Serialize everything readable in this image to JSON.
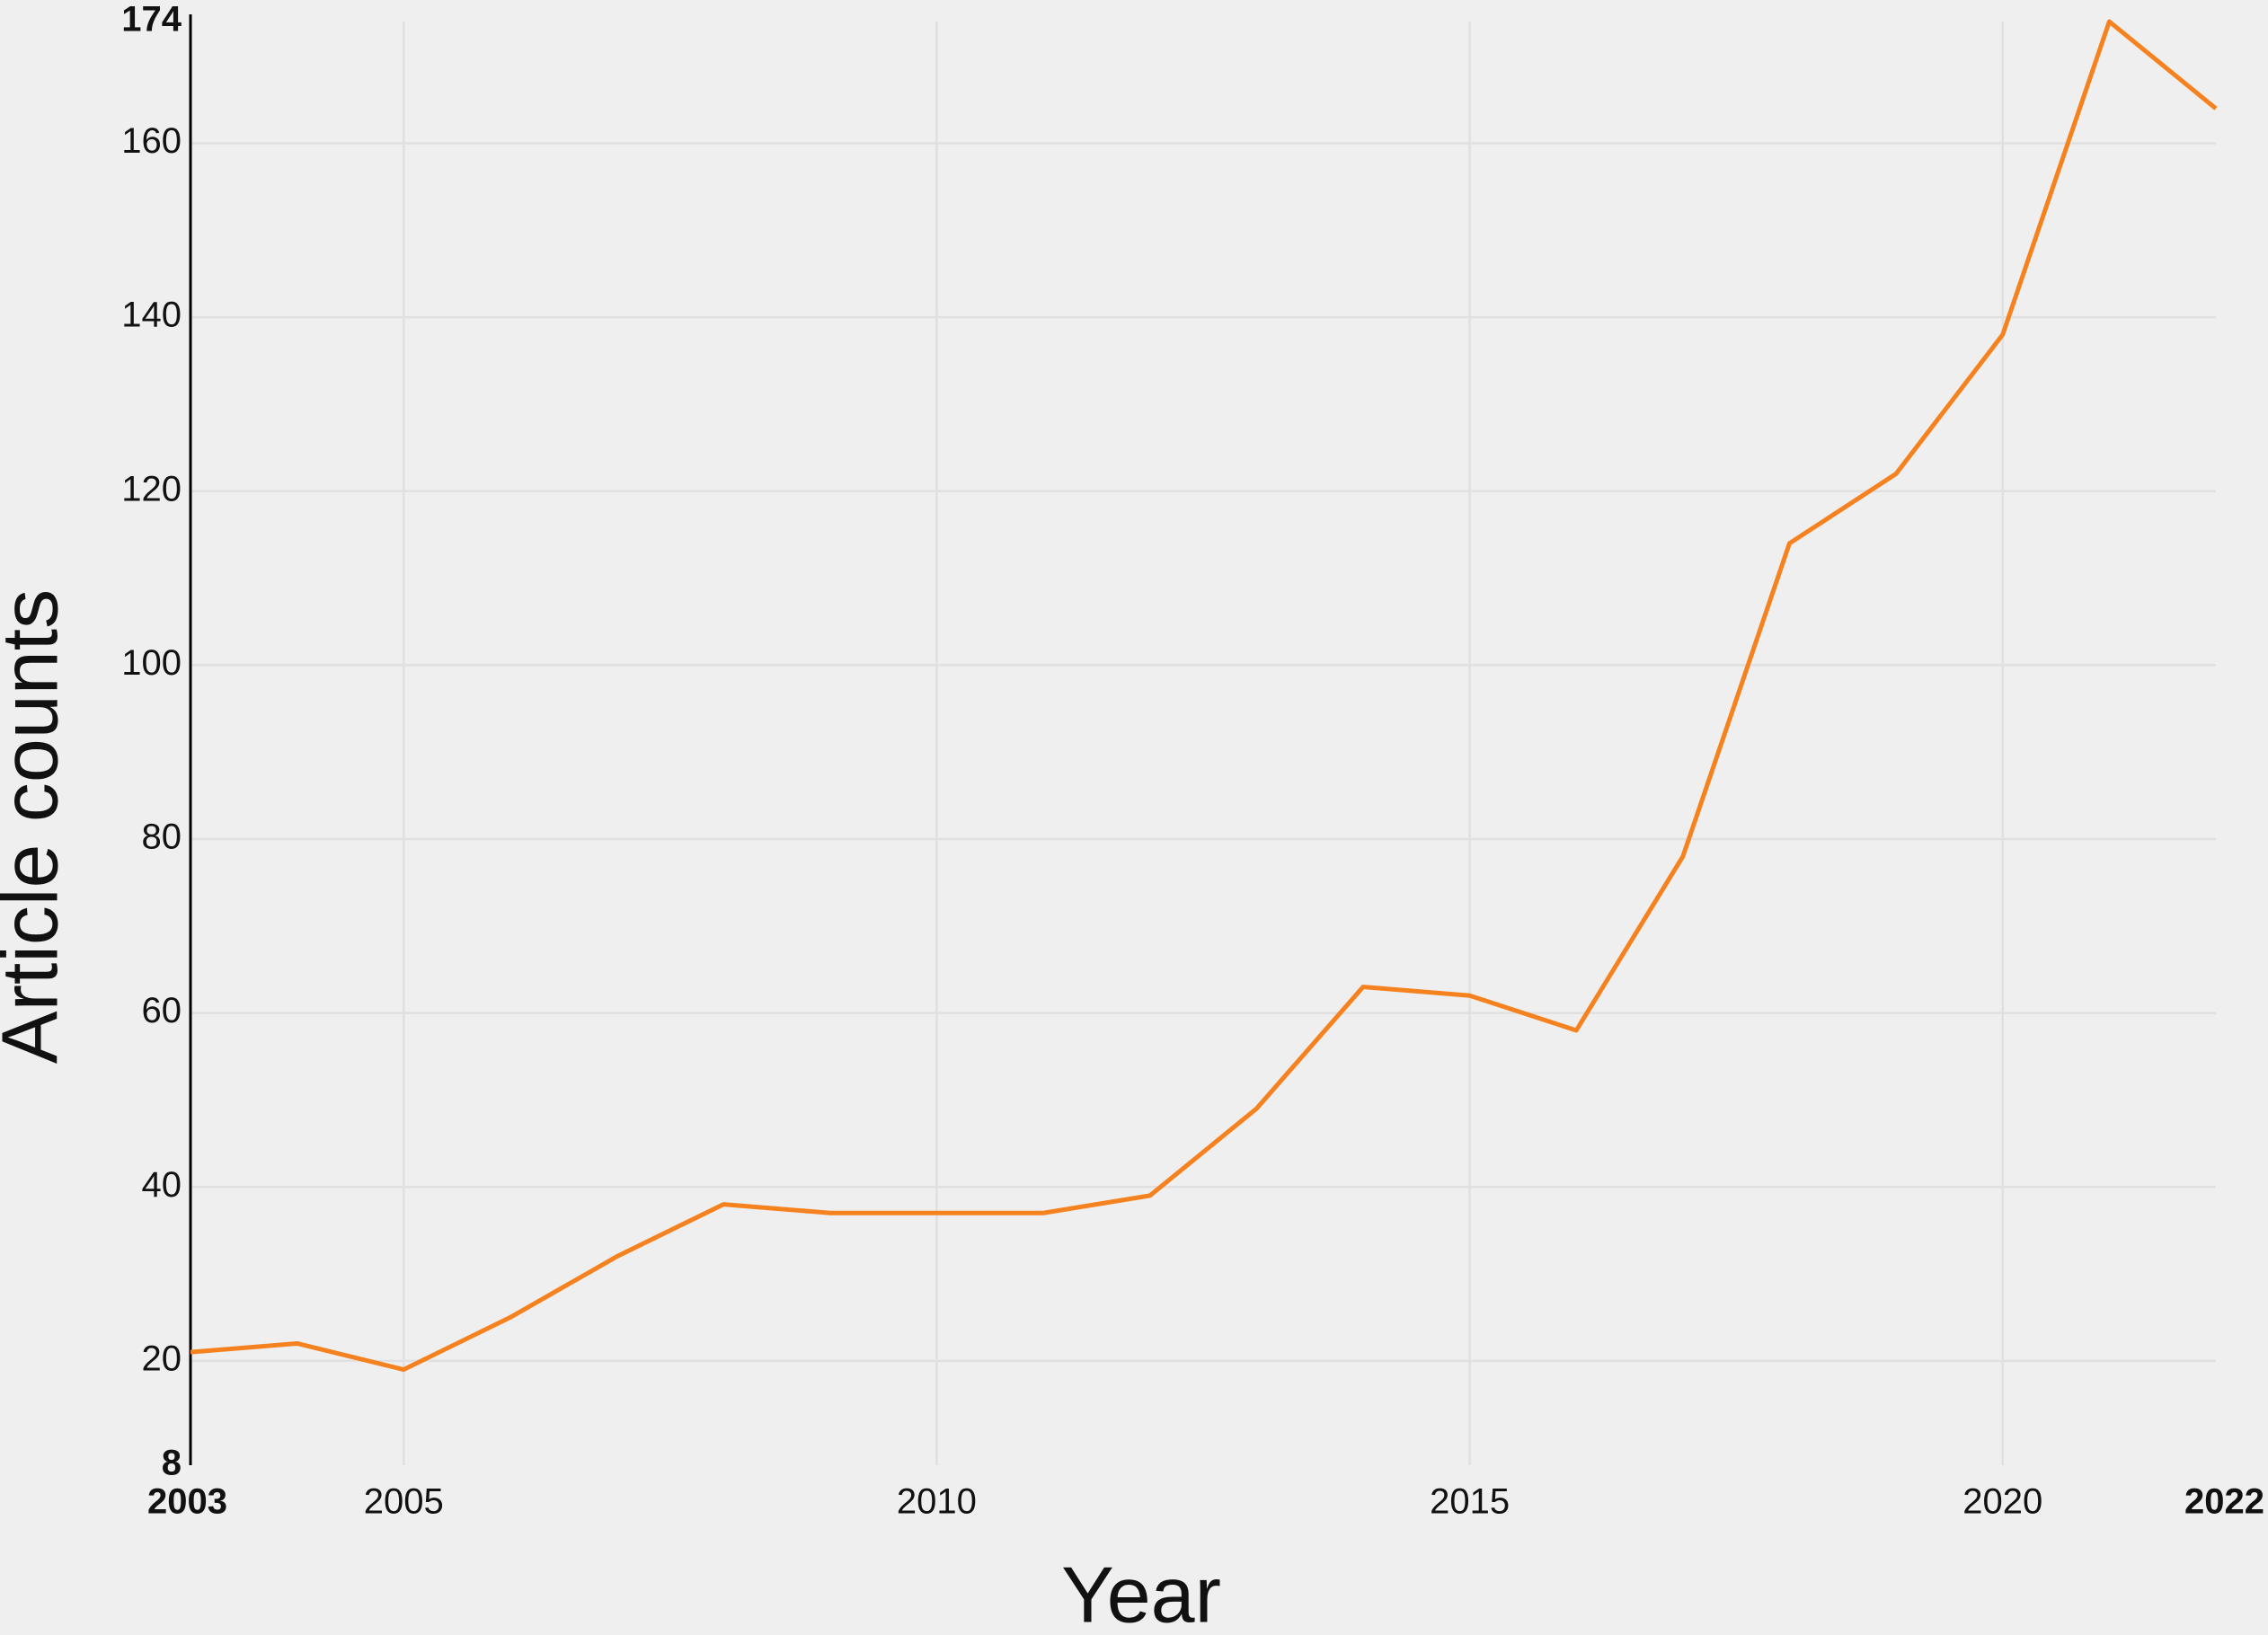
{
  "chart_data": {
    "type": "line",
    "x_label": "Year",
    "y_label": "Article counts",
    "x": [
      2003,
      2004,
      2005,
      2006,
      2007,
      2008,
      2009,
      2010,
      2011,
      2012,
      2013,
      2014,
      2015,
      2016,
      2017,
      2018,
      2019,
      2020,
      2021,
      2022
    ],
    "series": [
      {
        "name": "Article counts",
        "color": "#f5821f",
        "values": [
          21,
          22,
          19,
          25,
          32,
          38,
          37,
          37,
          37,
          39,
          49,
          63,
          62,
          58,
          78,
          114,
          122,
          138,
          174,
          164
        ]
      }
    ],
    "xlim": [
      2003,
      2022
    ],
    "xticks": [
      2003,
      2005,
      2010,
      2015,
      2020,
      2022
    ],
    "ylim": [
      8,
      174
    ],
    "yticks": [
      8,
      20,
      40,
      60,
      80,
      100,
      120,
      140,
      160,
      174
    ],
    "grid": true
  }
}
